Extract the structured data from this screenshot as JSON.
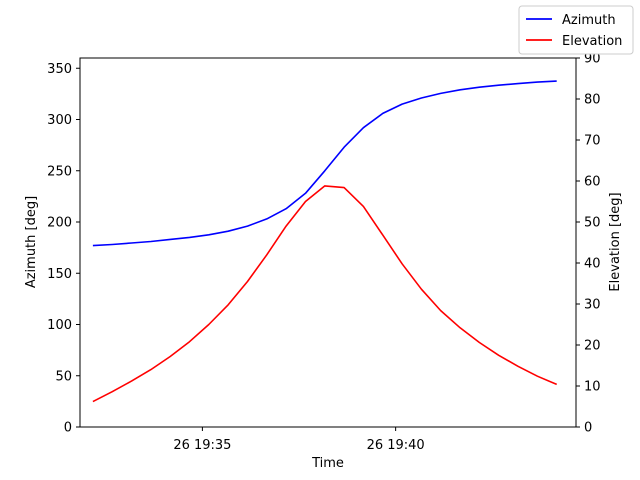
{
  "chart_data": {
    "type": "line",
    "xlabel": "Time",
    "ylabel_left": "Azimuth [deg]",
    "ylabel_right": "Elevation [deg]",
    "x": [
      "19:32:10",
      "19:32:40",
      "19:33:10",
      "19:33:40",
      "19:34:10",
      "19:34:40",
      "19:35:10",
      "19:35:40",
      "19:36:10",
      "19:36:40",
      "19:37:10",
      "19:37:40",
      "19:38:10",
      "19:38:40",
      "19:39:10",
      "19:39:40",
      "19:40:10",
      "19:40:40",
      "19:41:10",
      "19:41:40",
      "19:42:10",
      "19:42:40",
      "19:43:10",
      "19:43:40",
      "19:44:10"
    ],
    "xlim": [
      "19:31:50",
      "19:44:40"
    ],
    "xticks": [
      {
        "t": "19:35:00",
        "label": "26 19:35"
      },
      {
        "t": "19:40:00",
        "label": "26 19:40"
      }
    ],
    "series": [
      {
        "name": "Azimuth",
        "axis": "left",
        "color": "#0000ff",
        "values": [
          177,
          178,
          179.5,
          181,
          183,
          185,
          187.5,
          191,
          196,
          203,
          213,
          228,
          250,
          273,
          292,
          306,
          315,
          321,
          325.5,
          329,
          331.5,
          333.5,
          335,
          336.5,
          337.5
        ]
      },
      {
        "name": "Elevation",
        "axis": "right",
        "color": "#ff0000",
        "values": [
          6.2,
          8.6,
          11.2,
          14.0,
          17.2,
          20.8,
          25.0,
          29.8,
          35.5,
          42.0,
          49.0,
          55.0,
          58.8,
          58.4,
          53.8,
          46.8,
          39.8,
          33.6,
          28.4,
          24.2,
          20.6,
          17.5,
          14.8,
          12.4,
          10.4
        ]
      }
    ],
    "ylim_left": [
      0,
      360
    ],
    "yticks_left": [
      0,
      50,
      100,
      150,
      200,
      250,
      300,
      350
    ],
    "ylim_right": [
      0,
      90
    ],
    "yticks_right": [
      0,
      10,
      20,
      30,
      40,
      50,
      60,
      70,
      80,
      90
    ],
    "grid": false,
    "legend": "top-right",
    "legend_entries": [
      "Azimuth",
      "Elevation"
    ]
  }
}
